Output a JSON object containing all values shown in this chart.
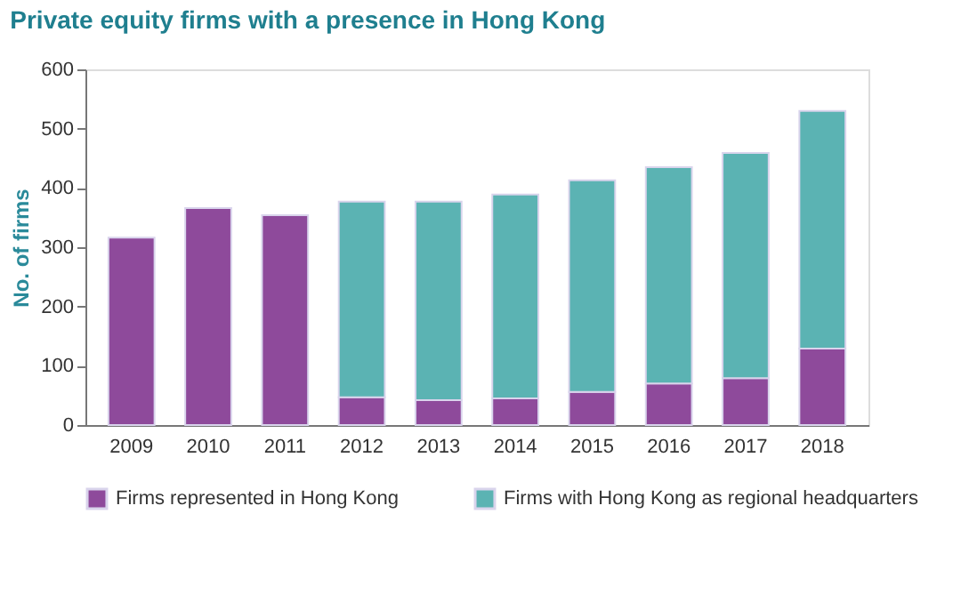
{
  "chart_data": {
    "type": "bar",
    "title": "Private equity firms with a presence in Hong Kong",
    "ylabel": "No. of firms",
    "categories": [
      "2009",
      "2010",
      "2011",
      "2012",
      "2013",
      "2014",
      "2015",
      "2016",
      "2017",
      "2018"
    ],
    "series": [
      {
        "name": "Firms represented in Hong Kong",
        "color": "#8e4a9b",
        "values": [
          316,
          366,
          354,
          47,
          42,
          45,
          56,
          70,
          79,
          129
        ]
      },
      {
        "name": "Firms with Hong Kong as regional headquarters",
        "color": "#5bb3b3",
        "values": [
          null,
          null,
          null,
          330,
          335,
          344,
          357,
          365,
          380,
          401
        ]
      }
    ],
    "stacked": true,
    "ylim": [
      0,
      600
    ],
    "yticks": [
      0,
      100,
      200,
      300,
      400,
      500,
      600
    ],
    "grid": false,
    "legend": "bottom"
  }
}
